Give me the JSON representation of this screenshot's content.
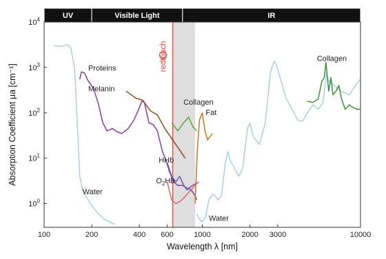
{
  "chart_data": {
    "type": "line",
    "title": "",
    "xlabel": "Wavelength λ [nm]",
    "ylabel": "Absorption Coefficient μa [cm⁻¹]",
    "x_scale": "log",
    "y_scale": "log",
    "xlim": [
      100,
      10000
    ],
    "ylim": [
      0.3,
      10000
    ],
    "grid": false,
    "x_ticks": [
      {
        "value": 100,
        "label": "100"
      },
      {
        "value": 200,
        "label": "200"
      },
      {
        "value": 400,
        "label": "400"
      },
      {
        "value": 600,
        "label": "600"
      },
      {
        "value": 1000,
        "label": "1000"
      },
      {
        "value": 2000,
        "label": "2000"
      },
      {
        "value": 3000,
        "label": "3000"
      },
      {
        "value": 10000,
        "label": "10000"
      }
    ],
    "y_ticks": [
      {
        "value": 1,
        "base": "10",
        "exp": "0"
      },
      {
        "value": 10,
        "base": "10",
        "exp": "1"
      },
      {
        "value": 100,
        "base": "10",
        "exp": "2"
      },
      {
        "value": 1000,
        "base": "10",
        "exp": "3"
      },
      {
        "value": 10000,
        "base": "10",
        "exp": "4"
      }
    ],
    "bands": [
      {
        "label": "UV",
        "x_start": 100,
        "x_end": 200
      },
      {
        "label": "Visible Light",
        "x_start": 200,
        "x_end": 750
      },
      {
        "label": "IR",
        "x_start": 750,
        "x_end": 10000
      }
    ],
    "highlight_region": {
      "x_start": 650,
      "x_end": 900
    },
    "marker_line": {
      "x": 650,
      "label": "redtouch",
      "color": "#e0483a"
    },
    "series": [
      {
        "name": "Water",
        "color": "#a9cdea",
        "points": [
          [
            115,
            3000
          ],
          [
            130,
            2900
          ],
          [
            140,
            3200
          ],
          [
            148,
            2600
          ],
          [
            156,
            900
          ],
          [
            162,
            60
          ],
          [
            168,
            4
          ],
          [
            175,
            2
          ],
          [
            185,
            1.4
          ],
          [
            200,
            0.9
          ],
          [
            220,
            0.6
          ],
          [
            240,
            0.45
          ],
          [
            280,
            0.35
          ]
        ]
      },
      {
        "name": "Water",
        "color": "#a9cdea",
        "points": [
          [
            920,
            0.6
          ],
          [
            960,
            0.45
          ],
          [
            1000,
            0.4
          ],
          [
            1050,
            0.5
          ],
          [
            1100,
            1.2
          ],
          [
            1160,
            1.6
          ],
          [
            1200,
            1.5
          ],
          [
            1260,
            1.2
          ],
          [
            1320,
            1.5
          ],
          [
            1400,
            8
          ],
          [
            1450,
            14
          ],
          [
            1500,
            9
          ],
          [
            1600,
            6
          ],
          [
            1700,
            4
          ],
          [
            1800,
            6
          ],
          [
            1930,
            45
          ],
          [
            2000,
            60
          ],
          [
            2100,
            30
          ],
          [
            2300,
            20
          ],
          [
            2500,
            60
          ],
          [
            2700,
            800
          ],
          [
            2850,
            1400
          ],
          [
            2950,
            1100
          ],
          [
            3100,
            600
          ],
          [
            3400,
            200
          ],
          [
            3700,
            120
          ],
          [
            4000,
            70
          ],
          [
            4300,
            65
          ],
          [
            4700,
            110
          ],
          [
            5000,
            150
          ],
          [
            5400,
            120
          ],
          [
            5800,
            170
          ],
          [
            6100,
            800
          ],
          [
            6300,
            500
          ],
          [
            6800,
            400
          ],
          [
            7500,
            300
          ],
          [
            8500,
            250
          ],
          [
            9500,
            450
          ],
          [
            10000,
            550
          ]
        ]
      },
      {
        "name": "Proteins",
        "color": "#8b3a9a",
        "points": [
          [
            168,
            550
          ],
          [
            172,
            800
          ],
          [
            180,
            750
          ],
          [
            190,
            500
          ],
          [
            205,
            350
          ],
          [
            220,
            160
          ],
          [
            235,
            60
          ],
          [
            250,
            40
          ],
          [
            270,
            45
          ],
          [
            290,
            38
          ],
          [
            310,
            35
          ],
          [
            340,
            45
          ],
          [
            370,
            70
          ],
          [
            400,
            130
          ],
          [
            415,
            180
          ],
          [
            430,
            170
          ],
          [
            460,
            60
          ],
          [
            490,
            55
          ],
          [
            520,
            40
          ],
          [
            560,
            14
          ],
          [
            590,
            9
          ],
          [
            620,
            5
          ],
          [
            660,
            3
          ],
          [
            700,
            2.5
          ],
          [
            750,
            2.5
          ],
          [
            800,
            2.2
          ],
          [
            850,
            2
          ],
          [
            900,
            1.5
          ],
          [
            920,
            1.2
          ]
        ]
      },
      {
        "name": "Melanin",
        "color": "#8a4a1c",
        "points": [
          [
            330,
            300
          ],
          [
            380,
            210
          ],
          [
            420,
            190
          ],
          [
            470,
            110
          ],
          [
            520,
            90
          ],
          [
            580,
            45
          ],
          [
            650,
            25
          ],
          [
            720,
            15
          ],
          [
            780,
            10
          ]
        ]
      },
      {
        "name": "Collagen",
        "color": "#5aa43a",
        "points": [
          [
            640,
            60
          ],
          [
            700,
            40
          ],
          [
            760,
            60
          ],
          [
            820,
            80
          ],
          [
            870,
            50
          ],
          [
            920,
            40
          ]
        ]
      },
      {
        "name": "Fat",
        "color": "#c0772a",
        "points": [
          [
            900,
            1
          ],
          [
            930,
            15
          ],
          [
            960,
            70
          ],
          [
            1000,
            100
          ],
          [
            1040,
            40
          ],
          [
            1080,
            25
          ],
          [
            1120,
            30
          ],
          [
            1160,
            35
          ]
        ]
      },
      {
        "name": "Collagen",
        "color": "#3f8f3a",
        "points": [
          [
            4600,
            180
          ],
          [
            5000,
            170
          ],
          [
            5400,
            200
          ],
          [
            5700,
            500
          ],
          [
            5900,
            600
          ],
          [
            6050,
            1300
          ],
          [
            6150,
            700
          ],
          [
            6300,
            300
          ],
          [
            6500,
            600
          ],
          [
            6700,
            250
          ],
          [
            7000,
            300
          ],
          [
            7300,
            400
          ],
          [
            7600,
            200
          ],
          [
            8000,
            120
          ],
          [
            8500,
            150
          ],
          [
            9000,
            130
          ],
          [
            9500,
            120
          ],
          [
            10000,
            120
          ]
        ]
      },
      {
        "name": "HHb",
        "color": "#6a5aa8",
        "points": [
          [
            600,
            8
          ],
          [
            640,
            4
          ],
          [
            680,
            3
          ],
          [
            720,
            4
          ],
          [
            760,
            2.6
          ],
          [
            800,
            2
          ],
          [
            850,
            2.4
          ],
          [
            900,
            2.7
          ],
          [
            950,
            3
          ]
        ]
      },
      {
        "name": "O2Hb",
        "color": "#d46a6a",
        "points": [
          [
            600,
            3
          ],
          [
            640,
            1.2
          ],
          [
            680,
            1
          ],
          [
            720,
            1.1
          ],
          [
            760,
            1.3
          ],
          [
            800,
            1.6
          ],
          [
            850,
            2
          ],
          [
            900,
            2.6
          ],
          [
            950,
            3
          ]
        ]
      }
    ],
    "annotations": [
      {
        "text": "Proteins",
        "x": 190,
        "y": 850
      },
      {
        "text": "Melanin",
        "x": 190,
        "y": 300
      },
      {
        "text": "Collagen",
        "x": 760,
        "y": 150
      },
      {
        "text": "Fat",
        "x": 1050,
        "y": 90
      },
      {
        "text": "HHb",
        "x": 530,
        "y": 8
      },
      {
        "text": "O2Hb",
        "x": 510,
        "y": 2.8
      },
      {
        "text": "Water",
        "x": 175,
        "y": 1.6
      },
      {
        "text": "Water",
        "x": 1100,
        "y": 0.42
      },
      {
        "text": "Collagen",
        "x": 5300,
        "y": 1400
      }
    ]
  }
}
